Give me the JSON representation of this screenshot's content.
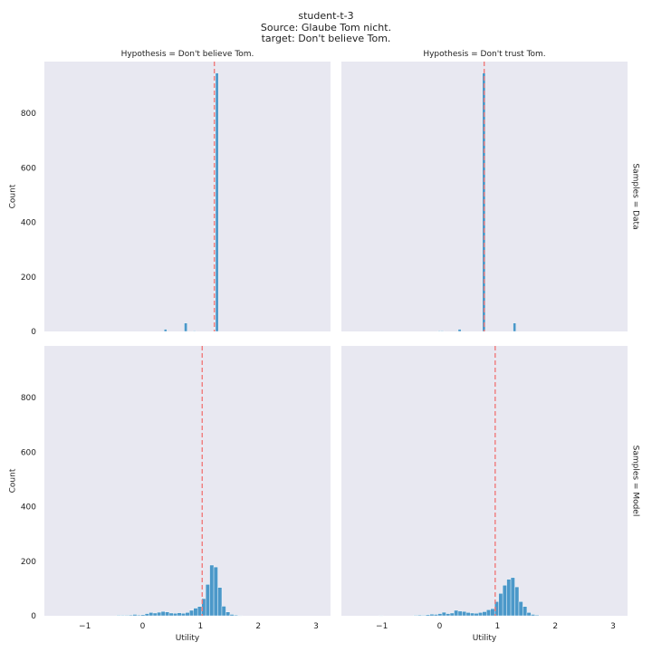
{
  "chart_data": {
    "type": "histogram",
    "title_lines": [
      "student-t-3",
      "Source: Glaube Tom nicht.",
      "target: Don't believe Tom."
    ],
    "xlabel": "Utility",
    "ylabel": "Count",
    "xlim": [
      -1.7,
      3.25
    ],
    "ylim": [
      0,
      990
    ],
    "xticks": [
      -1,
      0,
      1,
      2,
      3
    ],
    "yticks": [
      0,
      200,
      400,
      600,
      800
    ],
    "grid": false,
    "bar_color": "#3a8fc4",
    "ref_line_color": "#f07b7b",
    "panel_bg": "#e8e8f1",
    "col_titles": [
      "Hypothesis = Don't believe Tom.",
      "Hypothesis = Don't trust Tom."
    ],
    "row_titles": [
      "Samples = Data",
      "Samples = Model"
    ],
    "panels": [
      {
        "row": 0,
        "col": 0,
        "ref_line": 1.24,
        "bins": [
          [
            0.37,
            0.42,
            8
          ],
          [
            0.72,
            0.77,
            31
          ],
          [
            0.87,
            0.92,
            2
          ],
          [
            1.26,
            1.31,
            948
          ]
        ]
      },
      {
        "row": 0,
        "col": 1,
        "ref_line": 0.77,
        "bins": [
          [
            -0.03,
            0.02,
            2
          ],
          [
            0.02,
            0.07,
            2
          ],
          [
            0.32,
            0.37,
            8
          ],
          [
            0.74,
            0.79,
            948
          ],
          [
            1.27,
            1.32,
            31
          ]
        ]
      },
      {
        "row": 1,
        "col": 0,
        "ref_line": 1.03,
        "bins": [
          [
            -0.45,
            -0.38,
            2
          ],
          [
            -0.38,
            -0.31,
            2
          ],
          [
            -0.31,
            -0.24,
            2
          ],
          [
            -0.24,
            -0.17,
            3
          ],
          [
            -0.17,
            -0.1,
            5
          ],
          [
            -0.1,
            -0.03,
            3
          ],
          [
            -0.03,
            0.04,
            4
          ],
          [
            0.04,
            0.11,
            8
          ],
          [
            0.11,
            0.18,
            12
          ],
          [
            0.18,
            0.25,
            10
          ],
          [
            0.25,
            0.32,
            13
          ],
          [
            0.32,
            0.39,
            16
          ],
          [
            0.39,
            0.46,
            14
          ],
          [
            0.46,
            0.53,
            10
          ],
          [
            0.53,
            0.6,
            9
          ],
          [
            0.6,
            0.67,
            11
          ],
          [
            0.67,
            0.74,
            9
          ],
          [
            0.74,
            0.81,
            12
          ],
          [
            0.81,
            0.88,
            20
          ],
          [
            0.88,
            0.95,
            28
          ],
          [
            0.95,
            1.02,
            34
          ],
          [
            1.02,
            1.09,
            63
          ],
          [
            1.09,
            1.16,
            115
          ],
          [
            1.16,
            1.23,
            186
          ],
          [
            1.23,
            1.3,
            179
          ],
          [
            1.3,
            1.37,
            104
          ],
          [
            1.37,
            1.44,
            35
          ],
          [
            1.44,
            1.51,
            14
          ],
          [
            1.51,
            1.58,
            5
          ],
          [
            1.58,
            1.65,
            3
          ],
          [
            1.65,
            1.72,
            1
          ]
        ]
      },
      {
        "row": 1,
        "col": 1,
        "ref_line": 0.96,
        "bins": [
          [
            -1.05,
            -0.98,
            1
          ],
          [
            -0.45,
            -0.38,
            2
          ],
          [
            -0.38,
            -0.31,
            3
          ],
          [
            -0.31,
            -0.24,
            2
          ],
          [
            -0.24,
            -0.17,
            4
          ],
          [
            -0.17,
            -0.1,
            6
          ],
          [
            -0.1,
            -0.03,
            5
          ],
          [
            -0.03,
            0.04,
            8
          ],
          [
            0.04,
            0.11,
            13
          ],
          [
            0.11,
            0.18,
            8
          ],
          [
            0.18,
            0.25,
            10
          ],
          [
            0.25,
            0.32,
            20
          ],
          [
            0.32,
            0.39,
            17
          ],
          [
            0.39,
            0.46,
            16
          ],
          [
            0.46,
            0.53,
            12
          ],
          [
            0.53,
            0.6,
            10
          ],
          [
            0.6,
            0.67,
            9
          ],
          [
            0.67,
            0.74,
            12
          ],
          [
            0.74,
            0.81,
            15
          ],
          [
            0.81,
            0.88,
            22
          ],
          [
            0.88,
            0.95,
            26
          ],
          [
            0.95,
            1.02,
            52
          ],
          [
            1.02,
            1.09,
            82
          ],
          [
            1.09,
            1.16,
            112
          ],
          [
            1.16,
            1.23,
            134
          ],
          [
            1.23,
            1.3,
            140
          ],
          [
            1.3,
            1.37,
            106
          ],
          [
            1.37,
            1.44,
            52
          ],
          [
            1.44,
            1.51,
            34
          ],
          [
            1.51,
            1.58,
            12
          ],
          [
            1.58,
            1.65,
            5
          ],
          [
            1.65,
            1.72,
            3
          ]
        ]
      }
    ]
  }
}
